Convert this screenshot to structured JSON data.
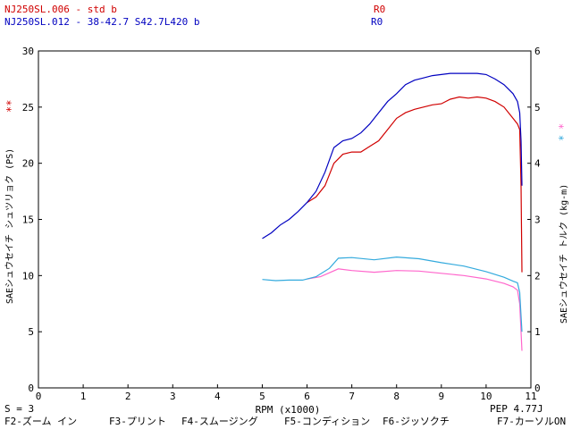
{
  "header": {
    "run1": {
      "name": "NJ250SL.006 - std b",
      "code": "R0",
      "color": "#d00000"
    },
    "run2": {
      "name": "NJ250SL.012 - 38-42.7 S42.7L420 b",
      "code": "R0",
      "color": "#0000c0"
    }
  },
  "left_axis": {
    "label": "SAEシュウセイチ シュツリョク (PS)",
    "markers": "**",
    "marker_color": "#d00000"
  },
  "right_axis": {
    "label": "SAEシュウセイチ トルク (kg-m)",
    "marker_pink": "*",
    "marker_cyan": "*"
  },
  "footer": {
    "s_value": "S = 3",
    "pep": "PEP 4.77J",
    "fkeys": {
      "f2": "F2-ズーム イン",
      "f3": "F3-プリント",
      "f4": "F4-スムージング",
      "f5": "F5-コンディション",
      "f6": "F6-ジッソクチ",
      "f7": "F7-カーソルON"
    }
  },
  "chart_data": {
    "type": "line",
    "xlabel": "RPM (x1000)",
    "ylabel": "SAEシュウセイチ シュツリョク (PS)",
    "y2label": "SAEシュウセイチ トルク (kg-m)",
    "xlim": [
      0,
      11
    ],
    "ylim": [
      0,
      30
    ],
    "y2lim": [
      0,
      6
    ],
    "xticks": [
      0,
      1,
      2,
      3,
      4,
      5,
      6,
      7,
      8,
      9,
      10,
      11
    ],
    "yticks": [
      0,
      5,
      10,
      15,
      20,
      25,
      30
    ],
    "y2ticks": [
      0,
      1,
      2,
      3,
      4,
      5,
      6
    ],
    "grid": false,
    "series": [
      {
        "name": "NJ250SL.006 - std b",
        "axis": "power",
        "color": "#d00000",
        "x": [
          6.0,
          6.2,
          6.4,
          6.6,
          6.8,
          7.0,
          7.2,
          7.4,
          7.6,
          7.8,
          8.0,
          8.2,
          8.4,
          8.6,
          8.8,
          9.0,
          9.2,
          9.4,
          9.6,
          9.8,
          10.0,
          10.2,
          10.4,
          10.6,
          10.7,
          10.75,
          10.78,
          10.8
        ],
        "y": [
          16.5,
          17.0,
          18.0,
          20.0,
          20.8,
          21.0,
          21.0,
          21.5,
          22.0,
          23.0,
          24.0,
          24.5,
          24.8,
          25.0,
          25.2,
          25.3,
          25.7,
          25.9,
          25.8,
          25.9,
          25.8,
          25.5,
          25.0,
          24.0,
          23.5,
          23.0,
          18.0,
          10.3
        ]
      },
      {
        "name": "NJ250SL.012 - 38-42.7 S42.7L420 b",
        "axis": "power",
        "color": "#0000c0",
        "x": [
          5.0,
          5.2,
          5.4,
          5.6,
          5.8,
          6.0,
          6.2,
          6.4,
          6.6,
          6.8,
          7.0,
          7.2,
          7.4,
          7.6,
          7.8,
          8.0,
          8.2,
          8.4,
          8.6,
          8.8,
          9.0,
          9.2,
          9.4,
          9.6,
          9.8,
          10.0,
          10.2,
          10.4,
          10.6,
          10.7,
          10.75,
          10.78,
          10.8
        ],
        "y": [
          13.3,
          13.8,
          14.5,
          15.0,
          15.7,
          16.5,
          17.5,
          19.2,
          21.4,
          22.0,
          22.2,
          22.7,
          23.5,
          24.5,
          25.5,
          26.2,
          27.0,
          27.4,
          27.6,
          27.8,
          27.9,
          28.0,
          28.0,
          28.0,
          28.0,
          27.9,
          27.5,
          27.0,
          26.2,
          25.5,
          24.5,
          22.0,
          18.0
        ]
      },
      {
        "name": "NJ250SL.006 - std b",
        "axis": "torque",
        "color": "#ff66cc",
        "x": [
          6.0,
          6.3,
          6.5,
          6.7,
          7.0,
          7.5,
          8.0,
          8.5,
          9.0,
          9.5,
          10.0,
          10.4,
          10.6,
          10.7,
          10.75,
          10.8
        ],
        "y": [
          1.94,
          1.98,
          2.05,
          2.12,
          2.09,
          2.06,
          2.09,
          2.08,
          2.04,
          2.0,
          1.94,
          1.86,
          1.8,
          1.74,
          1.5,
          0.66
        ]
      },
      {
        "name": "NJ250SL.012 - 38-42.7 S42.7L420 b",
        "axis": "torque",
        "color": "#33aadd",
        "x": [
          5.0,
          5.3,
          5.6,
          5.9,
          6.2,
          6.5,
          6.7,
          7.0,
          7.5,
          8.0,
          8.5,
          9.0,
          9.5,
          10.0,
          10.4,
          10.6,
          10.7,
          10.75,
          10.8
        ],
        "y": [
          1.93,
          1.91,
          1.92,
          1.92,
          1.98,
          2.13,
          2.31,
          2.32,
          2.28,
          2.33,
          2.3,
          2.23,
          2.17,
          2.07,
          1.97,
          1.9,
          1.87,
          1.7,
          1.0
        ]
      }
    ]
  }
}
